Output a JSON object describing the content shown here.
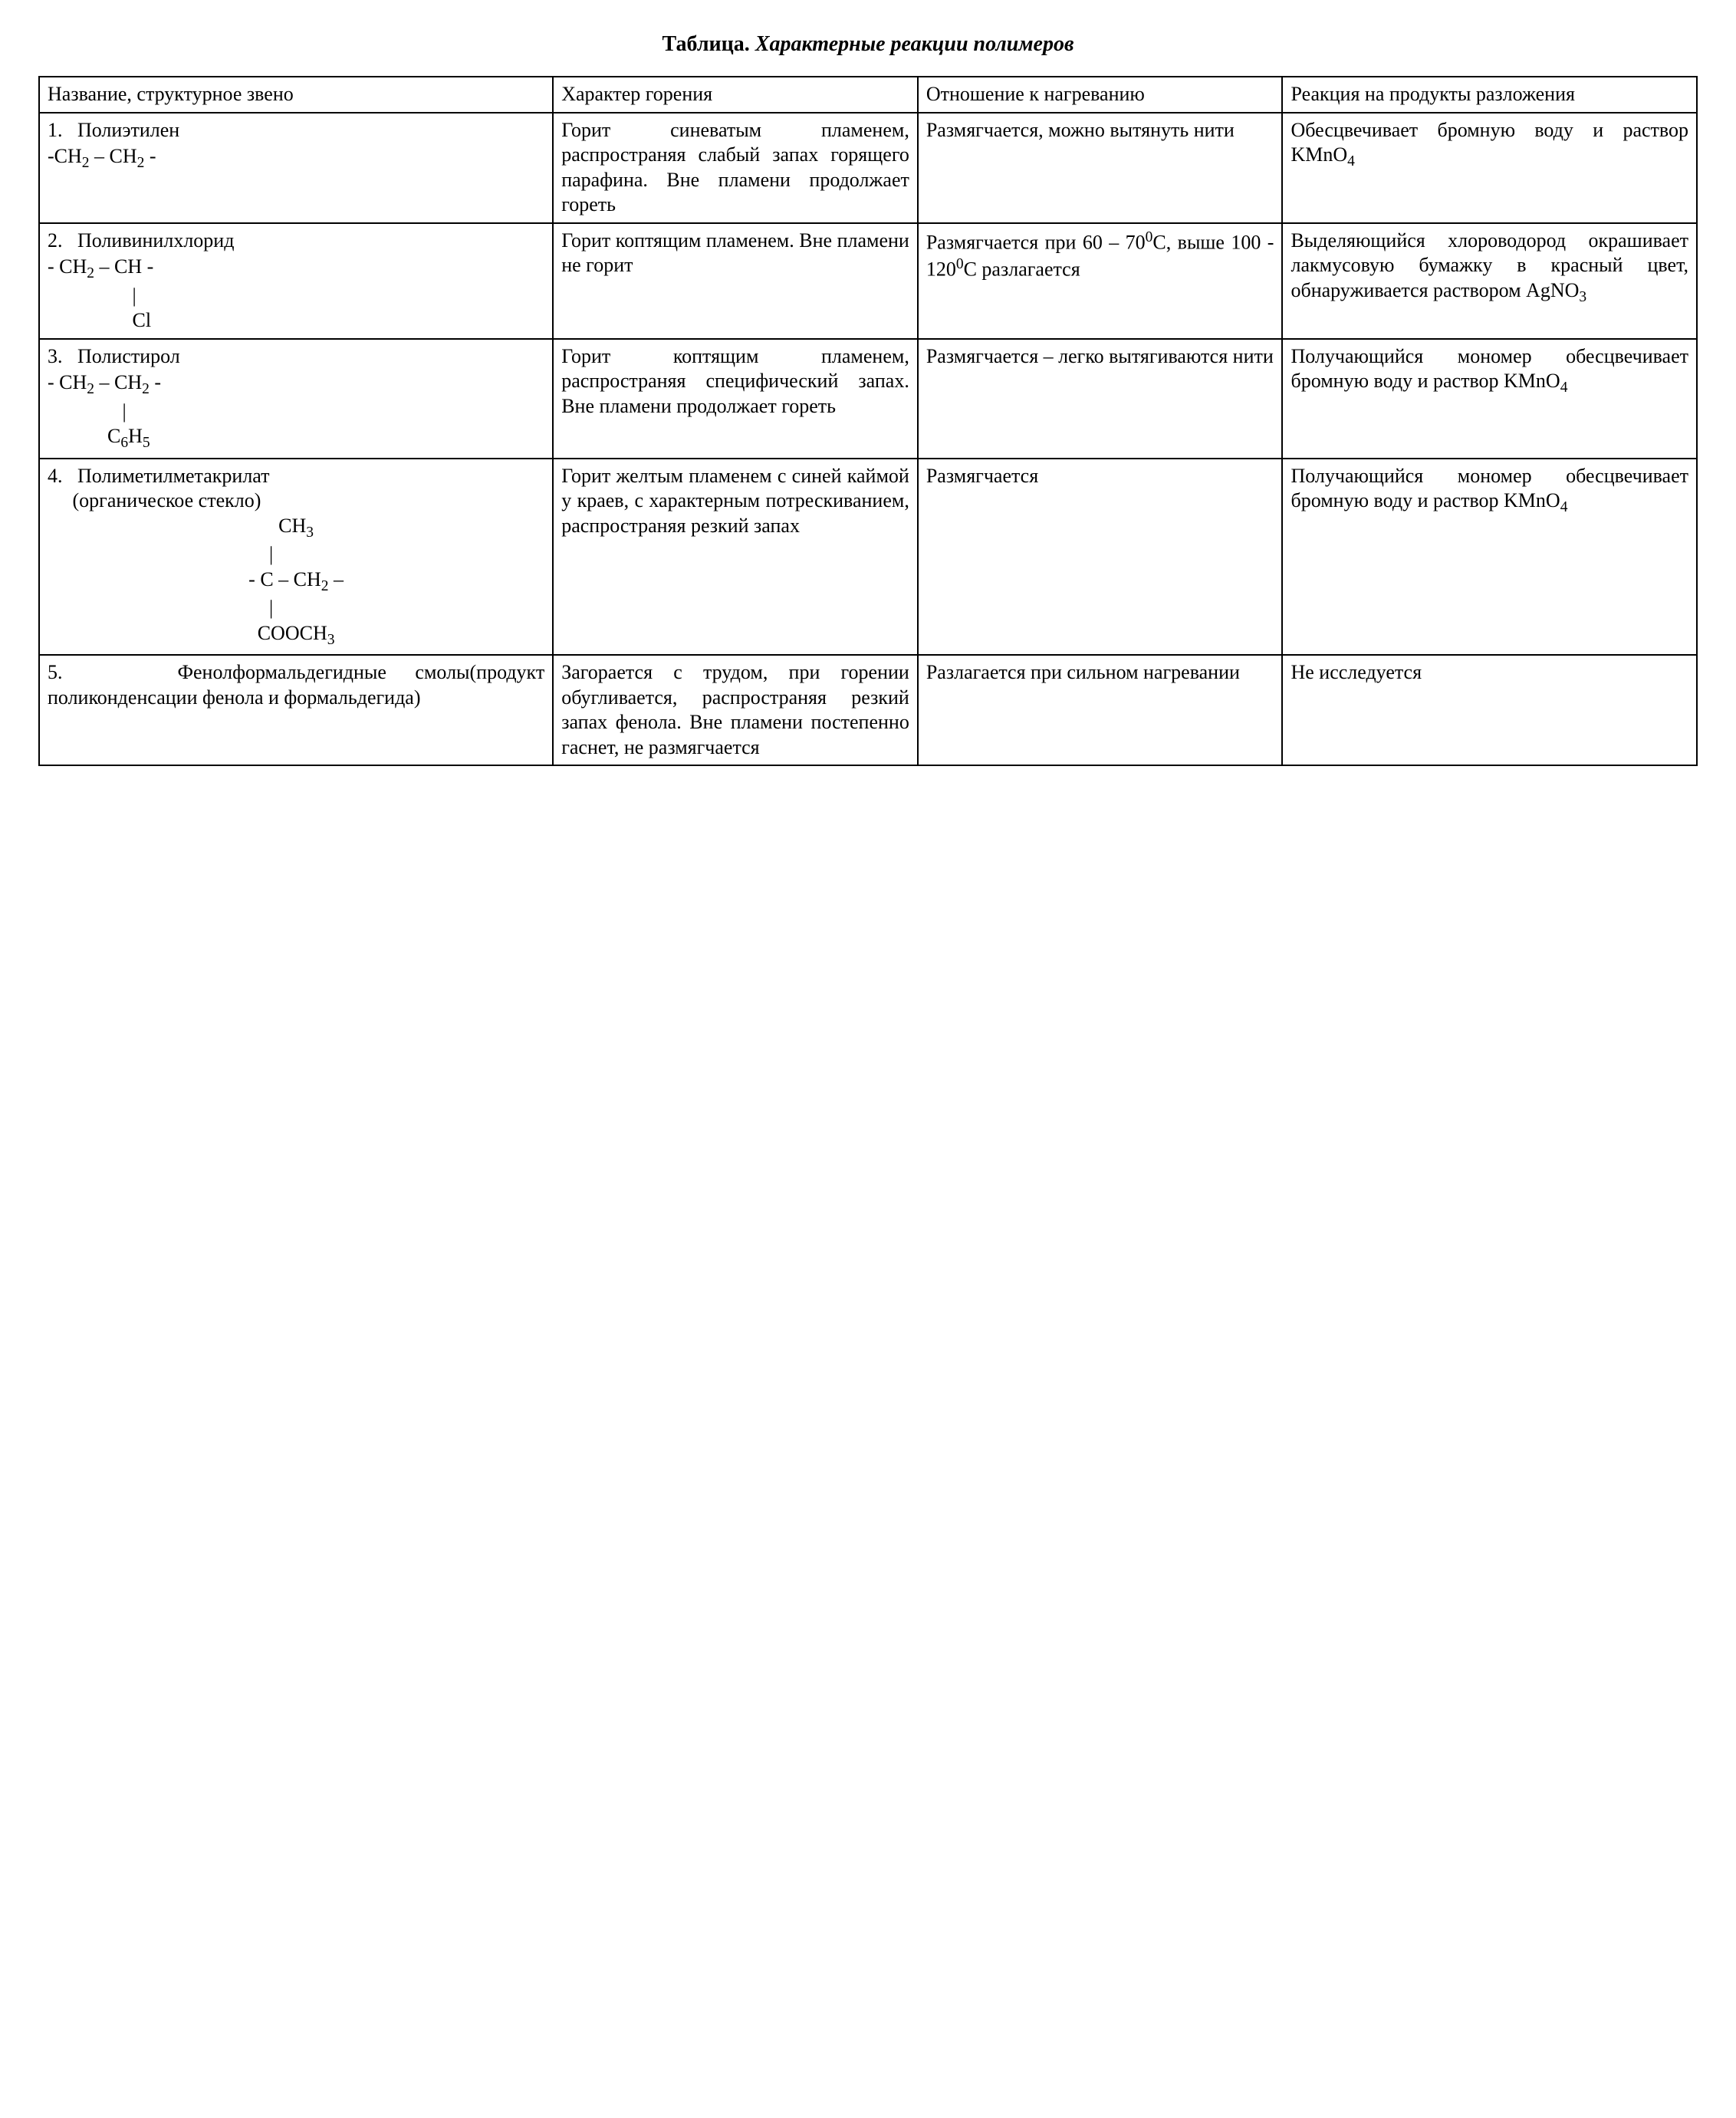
{
  "title_label": "Таблица.",
  "title_name": "Характерные реакции полимеров",
  "headers": {
    "c1": "Название, структурное звено",
    "c2": "Характер горения",
    "c3": "Отношение к нагреванию",
    "c4": "Реакция на продукты разложения"
  },
  "rows": [
    {
      "num": "1.",
      "name": "Полиэтилен",
      "burn": "Горит синеватым пламенем, распространяя слабый запах горящего парафина. Вне пламени продолжает гореть",
      "heat": "Размягчается, можно вытянуть нити",
      "react_prefix": "Обесцвечивает бромную воду и раствор ",
      "react_chem": "KMnO",
      "react_sub": "4"
    },
    {
      "num": "2.",
      "name": "Поливинилхлорид",
      "burn": "Горит коптящим пламенем. Вне пламени не горит",
      "heat_prefix": "Размягчается при 60 – 70",
      "heat_mid": "С, выше 100 - 120",
      "heat_suffix": "С разлагается",
      "react_prefix": "Выделяющийся хлороводород окрашивает лакмусовую бумажку в красный цвет, обнаруживается раствором ",
      "react_chem": "AgNO",
      "react_sub": "3"
    },
    {
      "num": "3.",
      "name": "Полистирол",
      "burn": "Горит коптящим пламенем, распространяя специфический запах. Вне пламени продолжает гореть",
      "heat": "Размягчается – легко вытягиваются нити",
      "react_prefix": "Получающийся мономер обесцвечивает бромную воду и раствор ",
      "react_chem": "KMnO",
      "react_sub": "4"
    },
    {
      "num": "4.",
      "name": "Полиметилметакрилат",
      "name2": "(органическое стекло)",
      "burn": "Горит желтым пламенем с синей каймой у краев, с характерным потрескиванием, распространяя резкий запах",
      "heat": "Размягчается",
      "react_prefix": "Получающийся мономер обесцвечивает бромную воду и раствор ",
      "react_chem": "KMnO",
      "react_sub": "4"
    },
    {
      "num": "5.",
      "name": "Фенолформальдегидные смолы(продукт поликонденсации фенола и формальдегида)",
      "burn": "Загорается с трудом, при горении обугливается, распространяя резкий запах фенола. Вне пламени постепенно гаснет, не размягчается",
      "heat": "Разлагается при сильном нагревании",
      "react": "Не исследуется"
    }
  ],
  "formulas": {
    "r1": {
      "text": "-CH",
      "s1": "2",
      "dash": " – CH",
      "s2": "2",
      "end": " -"
    },
    "r2": {
      "l1a": "- CH",
      "l1s1": "2",
      "l1b": " – CH -",
      "cl": "Cl"
    },
    "r3": {
      "l1a": "- CH",
      "l1s1": "2",
      "l1b": " – CH",
      "l1s2": "2",
      "l1c": " -",
      "c6h5a": "C",
      "c6h5s1": "6",
      "c6h5b": "H",
      "c6h5s2": "5"
    },
    "r4": {
      "ch3": "CH",
      "ch3s": "3",
      "mid_a": "-   C – CH",
      "mid_s": "2",
      "mid_b": " –",
      "cooch3a": "COOCH",
      "cooch3s": "3"
    }
  }
}
